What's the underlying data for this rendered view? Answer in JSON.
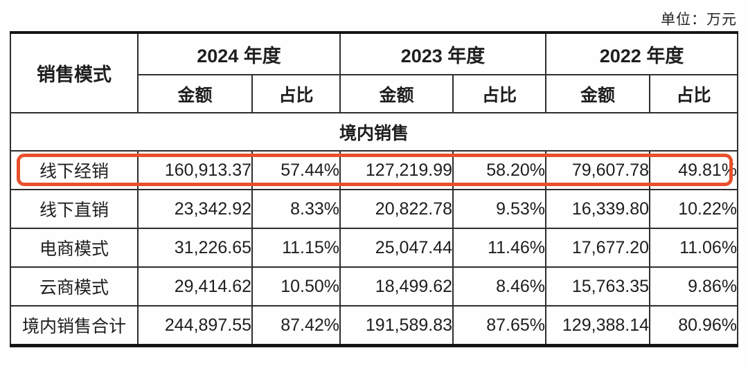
{
  "unit_label": "单位：万元",
  "highlight": {
    "color": "#e8502c",
    "row_label": "线下经销"
  },
  "table": {
    "col0_header": "销售模式",
    "year_groups": [
      {
        "label": "2024 年度"
      },
      {
        "label": "2023 年度"
      },
      {
        "label": "2022 年度"
      }
    ],
    "sub_headers": {
      "amount": "金额",
      "ratio": "占比"
    },
    "section_label": "境内销售",
    "rows": [
      {
        "label": "线下经销",
        "highlighted": true,
        "cells": [
          "160,913.37",
          "57.44%",
          "127,219.99",
          "58.20%",
          "79,607.78",
          "49.81%"
        ]
      },
      {
        "label": "线下直销",
        "highlighted": false,
        "cells": [
          "23,342.92",
          "8.33%",
          "20,822.78",
          "9.53%",
          "16,339.80",
          "10.22%"
        ]
      },
      {
        "label": "电商模式",
        "highlighted": false,
        "cells": [
          "31,226.65",
          "11.15%",
          "25,047.44",
          "11.46%",
          "17,677.20",
          "11.06%"
        ]
      },
      {
        "label": "云商模式",
        "highlighted": false,
        "cells": [
          "29,414.62",
          "10.50%",
          "18,499.62",
          "8.46%",
          "15,763.35",
          "9.86%"
        ]
      },
      {
        "label": "境内销售合计",
        "highlighted": false,
        "cells": [
          "244,897.55",
          "87.42%",
          "191,589.83",
          "87.65%",
          "129,388.14",
          "80.96%"
        ]
      }
    ]
  }
}
